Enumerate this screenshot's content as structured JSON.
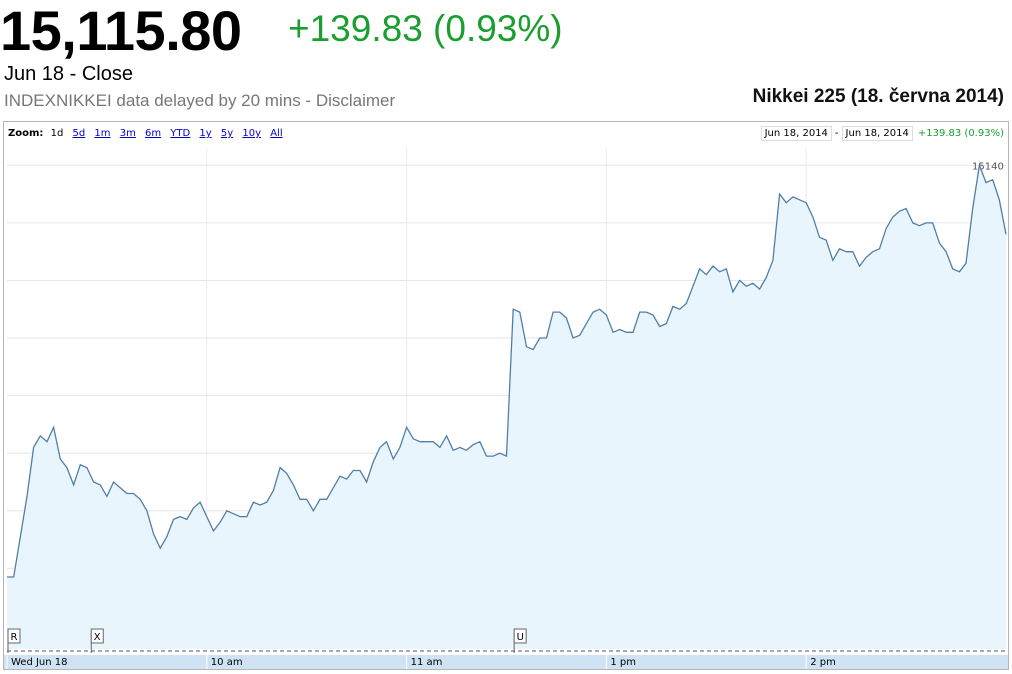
{
  "header": {
    "price": "15,115.80",
    "change": "+139.83 (0.93%)",
    "close_label": "Jun 18 - Close",
    "source_label": "INDEXNIKKEI data delayed by 20 mins - ",
    "disclaimer": "Disclaimer",
    "chart_title": "Nikkei 225 (18. června 2014)"
  },
  "toolbar": {
    "zoom_label": "Zoom:",
    "zoom_options": [
      "1d",
      "5d",
      "1m",
      "3m",
      "6m",
      "YTD",
      "1y",
      "5y",
      "10y",
      "All"
    ],
    "range_start": "Jun 18, 2014",
    "range_sep": "-",
    "range_end": "Jun 18, 2014",
    "range_change": "+139.83 (0.93%)"
  },
  "colors": {
    "line": "#4f7fa8",
    "fill": "#e9f5fc",
    "positive": "#1a9e2f",
    "link": "#0000cc"
  },
  "chart_data": {
    "type": "area",
    "ylim": [
      14972,
      15146
    ],
    "y_ticks": [
      14980,
      15000,
      15020,
      15040,
      15060,
      15080,
      15100,
      15120,
      15140
    ],
    "x_tick_labels": [
      {
        "t": 0,
        "label": "Wed Jun 18"
      },
      {
        "t": 60,
        "label": "10 am"
      },
      {
        "t": 120,
        "label": "11 am"
      },
      {
        "t": 180,
        "label": "1 pm"
      },
      {
        "t": 240,
        "label": "2 pm"
      }
    ],
    "markers": [
      {
        "t": 0,
        "label": "R"
      },
      {
        "t": 25,
        "label": "X"
      },
      {
        "t": 152,
        "label": "U"
      }
    ],
    "points": [
      [
        0,
        14997
      ],
      [
        2,
        14997
      ],
      [
        6,
        15025
      ],
      [
        8,
        15042
      ],
      [
        10,
        15046
      ],
      [
        12,
        15044
      ],
      [
        14,
        15049
      ],
      [
        16,
        15038
      ],
      [
        18,
        15035
      ],
      [
        20,
        15029
      ],
      [
        22,
        15036
      ],
      [
        24,
        15035
      ],
      [
        26,
        15030
      ],
      [
        28,
        15029
      ],
      [
        30,
        15025
      ],
      [
        32,
        15030
      ],
      [
        34,
        15028
      ],
      [
        36,
        15026
      ],
      [
        38,
        15026
      ],
      [
        40,
        15024
      ],
      [
        42,
        15020
      ],
      [
        44,
        15012
      ],
      [
        46,
        15007
      ],
      [
        48,
        15011
      ],
      [
        50,
        15017
      ],
      [
        52,
        15018
      ],
      [
        54,
        15017
      ],
      [
        56,
        15021
      ],
      [
        58,
        15023
      ],
      [
        60,
        15018
      ],
      [
        62,
        15013
      ],
      [
        64,
        15016
      ],
      [
        66,
        15020
      ],
      [
        68,
        15019
      ],
      [
        70,
        15018
      ],
      [
        72,
        15018
      ],
      [
        74,
        15023
      ],
      [
        76,
        15022
      ],
      [
        78,
        15023
      ],
      [
        80,
        15027
      ],
      [
        82,
        15035
      ],
      [
        84,
        15033
      ],
      [
        86,
        15029
      ],
      [
        88,
        15024
      ],
      [
        90,
        15024
      ],
      [
        92,
        15020
      ],
      [
        94,
        15024
      ],
      [
        96,
        15024
      ],
      [
        98,
        15028
      ],
      [
        100,
        15032
      ],
      [
        102,
        15031
      ],
      [
        104,
        15034
      ],
      [
        106,
        15034
      ],
      [
        108,
        15030
      ],
      [
        110,
        15037
      ],
      [
        112,
        15042
      ],
      [
        114,
        15044
      ],
      [
        116,
        15038
      ],
      [
        118,
        15042
      ],
      [
        120,
        15049
      ],
      [
        122,
        15045
      ],
      [
        124,
        15044
      ],
      [
        126,
        15044
      ],
      [
        128,
        15044
      ],
      [
        130,
        15042
      ],
      [
        132,
        15046
      ],
      [
        134,
        15041
      ],
      [
        136,
        15042
      ],
      [
        138,
        15041
      ],
      [
        140,
        15043
      ],
      [
        142,
        15044
      ],
      [
        144,
        15039
      ],
      [
        146,
        15039
      ],
      [
        148,
        15040
      ],
      [
        150,
        15039
      ],
      [
        152,
        15090
      ],
      [
        154,
        15089
      ],
      [
        156,
        15077
      ],
      [
        158,
        15076
      ],
      [
        160,
        15080
      ],
      [
        162,
        15080
      ],
      [
        164,
        15089
      ],
      [
        166,
        15089
      ],
      [
        168,
        15087
      ],
      [
        170,
        15080
      ],
      [
        172,
        15081
      ],
      [
        174,
        15085
      ],
      [
        176,
        15089
      ],
      [
        178,
        15090
      ],
      [
        180,
        15088
      ],
      [
        182,
        15082
      ],
      [
        184,
        15083
      ],
      [
        186,
        15082
      ],
      [
        188,
        15082
      ],
      [
        190,
        15089
      ],
      [
        192,
        15089
      ],
      [
        194,
        15088
      ],
      [
        196,
        15084
      ],
      [
        198,
        15085
      ],
      [
        200,
        15091
      ],
      [
        202,
        15090
      ],
      [
        204,
        15092
      ],
      [
        206,
        15098
      ],
      [
        208,
        15104
      ],
      [
        210,
        15102
      ],
      [
        212,
        15105
      ],
      [
        214,
        15103
      ],
      [
        216,
        15104
      ],
      [
        218,
        15096
      ],
      [
        220,
        15100
      ],
      [
        222,
        15098
      ],
      [
        224,
        15099
      ],
      [
        226,
        15097
      ],
      [
        228,
        15101
      ],
      [
        230,
        15107
      ],
      [
        232,
        15130
      ],
      [
        234,
        15127
      ],
      [
        236,
        15129
      ],
      [
        238,
        15128
      ],
      [
        240,
        15127
      ],
      [
        242,
        15122
      ],
      [
        244,
        15115
      ],
      [
        246,
        15114
      ],
      [
        248,
        15107
      ],
      [
        250,
        15111
      ],
      [
        252,
        15110
      ],
      [
        254,
        15110
      ],
      [
        256,
        15105
      ],
      [
        258,
        15108
      ],
      [
        260,
        15110
      ],
      [
        262,
        15111
      ],
      [
        264,
        15118
      ],
      [
        266,
        15122
      ],
      [
        268,
        15124
      ],
      [
        270,
        15125
      ],
      [
        272,
        15120
      ],
      [
        274,
        15119
      ],
      [
        276,
        15120
      ],
      [
        278,
        15120
      ],
      [
        280,
        15113
      ],
      [
        282,
        15110
      ],
      [
        284,
        15104
      ],
      [
        286,
        15103
      ],
      [
        288,
        15106
      ],
      [
        290,
        15125
      ],
      [
        292,
        15140
      ],
      [
        294,
        15134
      ],
      [
        296,
        15135
      ],
      [
        298,
        15128
      ],
      [
        300,
        15116
      ]
    ]
  }
}
